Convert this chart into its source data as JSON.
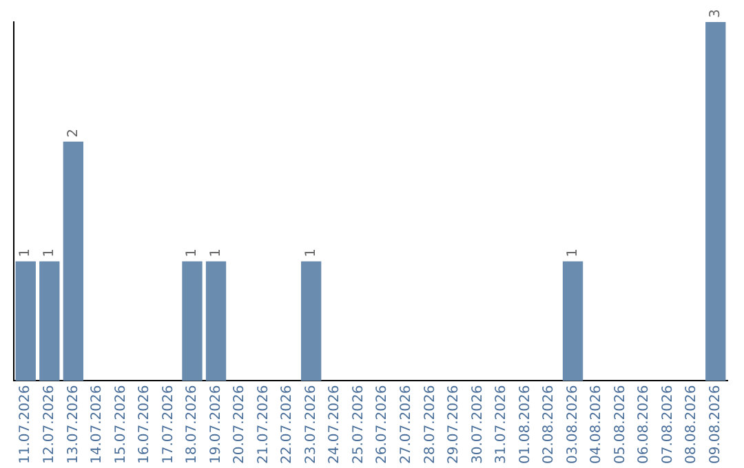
{
  "chart_data": {
    "type": "bar",
    "categories": [
      "11.07.2026",
      "12.07.2026",
      "13.07.2026",
      "14.07.2026",
      "15.07.2026",
      "16.07.2026",
      "17.07.2026",
      "18.07.2026",
      "19.07.2026",
      "20.07.2026",
      "21.07.2026",
      "22.07.2026",
      "23.07.2026",
      "24.07.2026",
      "25.07.2026",
      "26.07.2026",
      "27.07.2026",
      "28.07.2026",
      "29.07.2026",
      "30.07.2026",
      "31.07.2026",
      "01.08.2026",
      "02.08.2026",
      "03.08.2026",
      "04.08.2026",
      "05.08.2026",
      "06.08.2026",
      "07.08.2026",
      "08.08.2026",
      "09.08.2026"
    ],
    "values": [
      1,
      1,
      2,
      0,
      0,
      0,
      0,
      1,
      1,
      0,
      0,
      0,
      1,
      0,
      0,
      0,
      0,
      0,
      0,
      0,
      0,
      0,
      0,
      1,
      0,
      0,
      0,
      0,
      0,
      3
    ],
    "value_labels": [
      "1",
      "1",
      "2",
      null,
      null,
      null,
      null,
      "1",
      "1",
      null,
      null,
      null,
      "1",
      null,
      null,
      null,
      null,
      null,
      null,
      null,
      null,
      null,
      null,
      "1",
      null,
      null,
      null,
      null,
      null,
      "3"
    ],
    "color": "#6a8caf",
    "grid": false,
    "legend": false
  }
}
